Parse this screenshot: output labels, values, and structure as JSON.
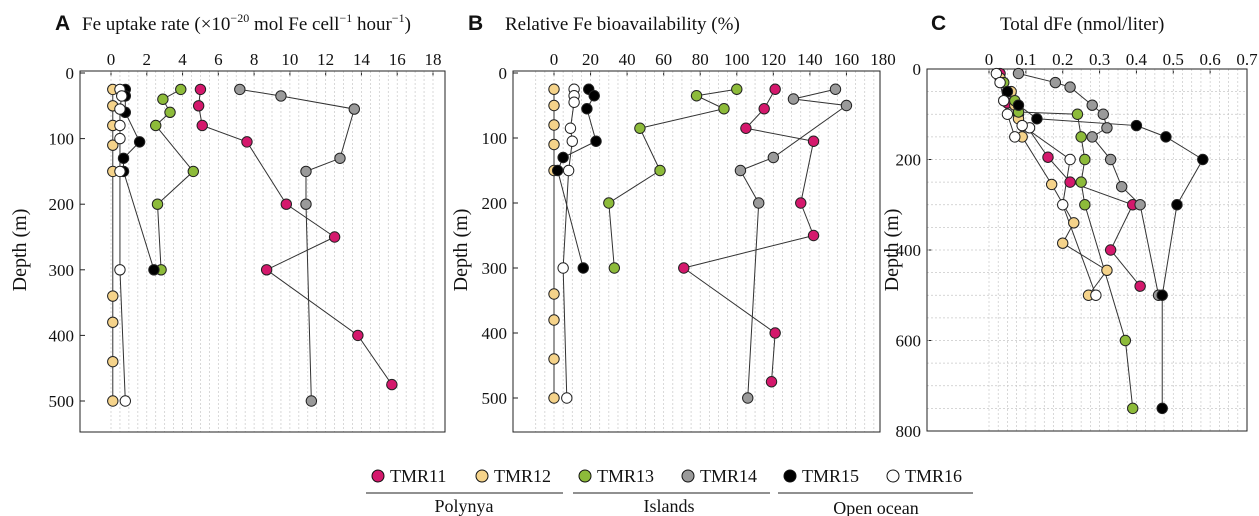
{
  "colors": {
    "TMR11": "#d4186c",
    "TMR12": "#f5d38a",
    "TMR13": "#8dbb3a",
    "TMR14": "#9a9a9a",
    "TMR15": "#000000",
    "TMR16": "#ffffff"
  },
  "legend": {
    "items": [
      "TMR11",
      "TMR12",
      "TMR13",
      "TMR14",
      "TMR15",
      "TMR16"
    ],
    "groups": [
      "Polynya",
      "Islands",
      "Open ocean"
    ]
  },
  "chart_data": [
    {
      "panel": "A",
      "type": "scatter",
      "title_main": "Fe uptake rate (×10",
      "title_sup1": "−20",
      "title_mid": " mol Fe cell",
      "title_sup2": "−1",
      "title_mid2": " hour",
      "title_sup3": "−1",
      "title_end": ")",
      "ylabel": "Depth (m)",
      "xlim": [
        0,
        18
      ],
      "ylim": [
        0,
        550
      ],
      "xticks": [
        0,
        2,
        4,
        6,
        8,
        10,
        12,
        14,
        16,
        18
      ],
      "yticks": [
        0,
        100,
        200,
        300,
        400,
        500
      ],
      "series": [
        {
          "name": "TMR11",
          "points": [
            [
              5.0,
              25
            ],
            [
              4.9,
              50
            ],
            [
              5.1,
              80
            ],
            [
              7.6,
              105
            ],
            [
              9.8,
              200
            ],
            [
              12.5,
              250
            ],
            [
              8.7,
              300
            ],
            [
              13.8,
              400
            ],
            [
              15.7,
              475
            ]
          ]
        },
        {
          "name": "TMR12",
          "points": [
            [
              0.1,
              25
            ],
            [
              0.1,
              50
            ],
            [
              0.1,
              80
            ],
            [
              0.1,
              110
            ],
            [
              0.1,
              150
            ],
            [
              0.1,
              340
            ],
            [
              0.1,
              380
            ],
            [
              0.1,
              440
            ],
            [
              0.1,
              500
            ]
          ]
        },
        {
          "name": "TMR13",
          "points": [
            [
              3.9,
              25
            ],
            [
              2.9,
              40
            ],
            [
              3.3,
              60
            ],
            [
              2.5,
              80
            ],
            [
              4.6,
              150
            ],
            [
              2.6,
              200
            ],
            [
              2.8,
              300
            ]
          ]
        },
        {
          "name": "TMR14",
          "points": [
            [
              7.2,
              25
            ],
            [
              9.5,
              35
            ],
            [
              13.6,
              55
            ],
            [
              12.8,
              130
            ],
            [
              10.9,
              150
            ],
            [
              10.9,
              200
            ],
            [
              11.2,
              500
            ]
          ]
        },
        {
          "name": "TMR15",
          "points": [
            [
              0.8,
              25
            ],
            [
              0.8,
              35
            ],
            [
              0.8,
              60
            ],
            [
              1.6,
              105
            ],
            [
              0.7,
              130
            ],
            [
              0.7,
              150
            ],
            [
              2.4,
              300
            ]
          ]
        },
        {
          "name": "TMR16",
          "points": [
            [
              0.5,
              25
            ],
            [
              0.6,
              35
            ],
            [
              0.5,
              55
            ],
            [
              0.5,
              80
            ],
            [
              0.5,
              100
            ],
            [
              0.5,
              150
            ],
            [
              0.5,
              300
            ],
            [
              0.8,
              500
            ]
          ]
        }
      ]
    },
    {
      "panel": "B",
      "type": "scatter",
      "title": "Relative Fe bioavailability (%)",
      "ylabel": "Depth (m)",
      "xlim": [
        -10,
        180
      ],
      "ylim": [
        0,
        550
      ],
      "xticks": [
        0,
        20,
        40,
        60,
        80,
        100,
        120,
        140,
        160,
        180
      ],
      "yticks": [
        0,
        100,
        200,
        300,
        400,
        500
      ],
      "series": [
        {
          "name": "TMR11",
          "points": [
            [
              121,
              25
            ],
            [
              115,
              55
            ],
            [
              105,
              85
            ],
            [
              142,
              105
            ],
            [
              135,
              200
            ],
            [
              142,
              250
            ],
            [
              71,
              300
            ],
            [
              121,
              400
            ],
            [
              119,
              475
            ]
          ]
        },
        {
          "name": "TMR12",
          "points": [
            [
              0,
              25
            ],
            [
              0,
              50
            ],
            [
              0,
              80
            ],
            [
              0,
              110
            ],
            [
              0,
              150
            ],
            [
              0,
              340
            ],
            [
              0,
              380
            ],
            [
              0,
              440
            ],
            [
              0,
              500
            ]
          ]
        },
        {
          "name": "TMR13",
          "points": [
            [
              100,
              25
            ],
            [
              78,
              35
            ],
            [
              93,
              55
            ],
            [
              47,
              85
            ],
            [
              58,
              150
            ],
            [
              30,
              200
            ],
            [
              33,
              300
            ]
          ]
        },
        {
          "name": "TMR14",
          "points": [
            [
              154,
              25
            ],
            [
              131,
              40
            ],
            [
              160,
              50
            ],
            [
              120,
              130
            ],
            [
              102,
              150
            ],
            [
              112,
              200
            ],
            [
              106,
              500
            ]
          ]
        },
        {
          "name": "TMR15",
          "points": [
            [
              19,
              25
            ],
            [
              22,
              35
            ],
            [
              18,
              55
            ],
            [
              23,
              105
            ],
            [
              5,
              130
            ],
            [
              2,
              150
            ],
            [
              16,
              300
            ]
          ]
        },
        {
          "name": "TMR16",
          "points": [
            [
              11,
              25
            ],
            [
              11,
              35
            ],
            [
              11,
              45
            ],
            [
              9,
              85
            ],
            [
              10,
              105
            ],
            [
              8,
              150
            ],
            [
              5,
              300
            ],
            [
              7,
              500
            ]
          ]
        }
      ]
    },
    {
      "panel": "C",
      "type": "scatter",
      "title": "Total dFe (nmol/liter)",
      "ylabel": "Depth (m)",
      "xlim": [
        0,
        0.7
      ],
      "ylim": [
        0,
        800
      ],
      "xticks": [
        0,
        0.1,
        0.2,
        0.3,
        0.4,
        0.5,
        0.6,
        0.7
      ],
      "xticklabels": [
        "0",
        "0.1",
        "0.2",
        "0.3",
        "0.4",
        "0.5",
        "0.6",
        "0.7"
      ],
      "yticks": [
        0,
        200,
        400,
        600,
        800
      ],
      "series": [
        {
          "name": "TMR11",
          "points": [
            [
              0.03,
              10
            ],
            [
              0.05,
              75
            ],
            [
              0.08,
              100
            ],
            [
              0.16,
              195
            ],
            [
              0.22,
              250
            ],
            [
              0.39,
              300
            ],
            [
              0.33,
              400
            ],
            [
              0.41,
              480
            ]
          ]
        },
        {
          "name": "TMR12",
          "points": [
            [
              0.03,
              20
            ],
            [
              0.06,
              50
            ],
            [
              0.07,
              80
            ],
            [
              0.08,
              110
            ],
            [
              0.09,
              150
            ],
            [
              0.17,
              255
            ],
            [
              0.23,
              340
            ],
            [
              0.2,
              385
            ],
            [
              0.32,
              445
            ],
            [
              0.27,
              500
            ]
          ]
        },
        {
          "name": "TMR13",
          "points": [
            [
              0.04,
              30
            ],
            [
              0.07,
              70
            ],
            [
              0.08,
              95
            ],
            [
              0.24,
              100
            ],
            [
              0.25,
              150
            ],
            [
              0.26,
              200
            ],
            [
              0.25,
              250
            ],
            [
              0.26,
              300
            ],
            [
              0.37,
              600
            ],
            [
              0.39,
              750
            ]
          ]
        },
        {
          "name": "TMR14",
          "points": [
            [
              0.08,
              10
            ],
            [
              0.18,
              30
            ],
            [
              0.22,
              40
            ],
            [
              0.28,
              80
            ],
            [
              0.31,
              100
            ],
            [
              0.32,
              130
            ],
            [
              0.28,
              150
            ],
            [
              0.33,
              200
            ],
            [
              0.36,
              260
            ],
            [
              0.41,
              300
            ],
            [
              0.46,
              500
            ]
          ]
        },
        {
          "name": "TMR15",
          "points": [
            [
              0.05,
              50
            ],
            [
              0.08,
              80
            ],
            [
              0.13,
              110
            ],
            [
              0.4,
              125
            ],
            [
              0.48,
              150
            ],
            [
              0.58,
              200
            ],
            [
              0.51,
              300
            ],
            [
              0.47,
              500
            ],
            [
              0.47,
              750
            ]
          ]
        },
        {
          "name": "TMR16",
          "points": [
            [
              0.02,
              10
            ],
            [
              0.03,
              30
            ],
            [
              0.04,
              70
            ],
            [
              0.05,
              100
            ],
            [
              0.07,
              150
            ],
            [
              0.11,
              130
            ],
            [
              0.09,
              125
            ],
            [
              0.22,
              200
            ],
            [
              0.2,
              300
            ],
            [
              0.29,
              500
            ]
          ]
        }
      ]
    }
  ]
}
